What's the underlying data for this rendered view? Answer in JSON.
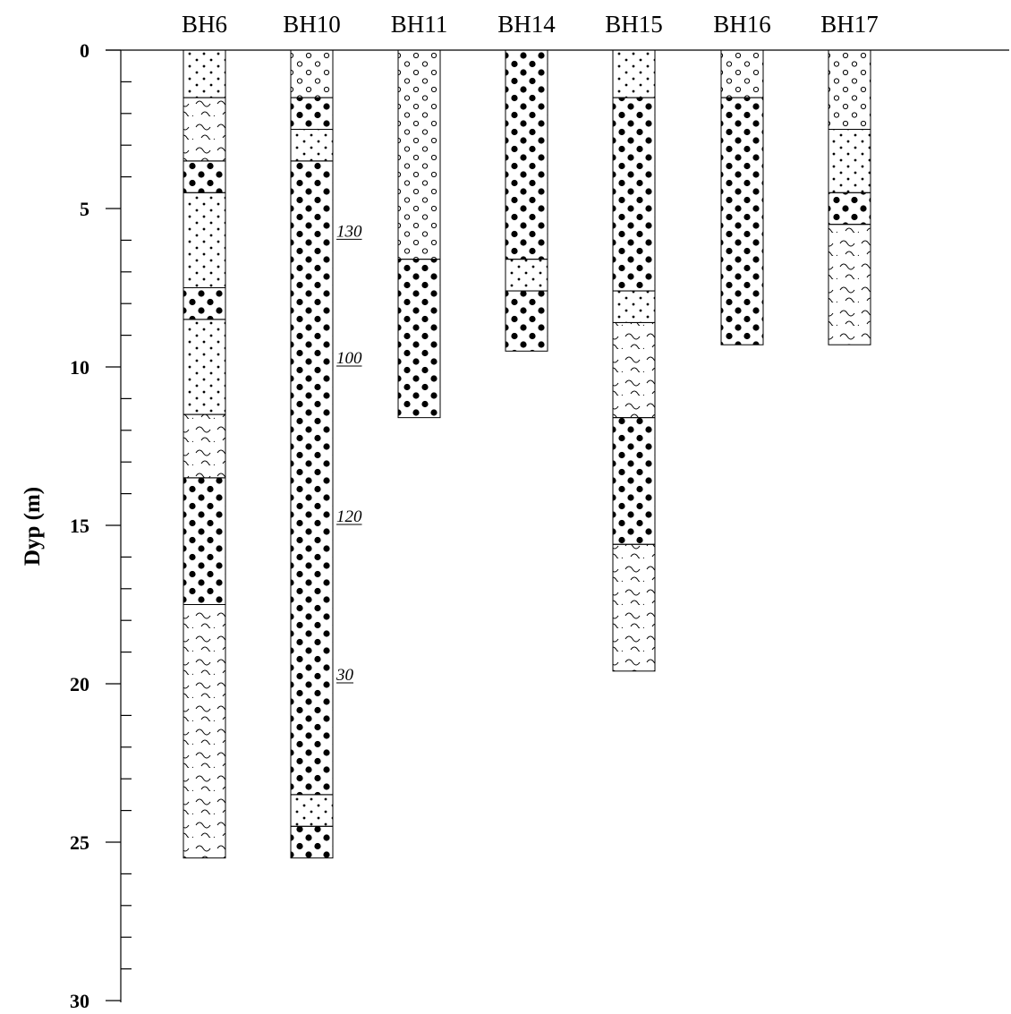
{
  "y_axis": {
    "title": "Dyp (m)",
    "min": 0,
    "max": 30,
    "major_ticks": [
      0,
      5,
      10,
      15,
      20,
      25,
      30
    ],
    "minor_step": 1
  },
  "soil_symbols": {
    "fine_dots": "fine sand",
    "large_dots": "gravel",
    "open_circles": "coarse material",
    "waves": "clay"
  },
  "boreholes": [
    {
      "name": "BH6",
      "layers": [
        {
          "from": 0,
          "to": 1.5,
          "pattern": "fine_dots"
        },
        {
          "from": 1.5,
          "to": 3.5,
          "pattern": "waves"
        },
        {
          "from": 3.5,
          "to": 4.5,
          "pattern": "large_dots"
        },
        {
          "from": 4.5,
          "to": 7.5,
          "pattern": "fine_dots"
        },
        {
          "from": 7.5,
          "to": 8.5,
          "pattern": "large_dots"
        },
        {
          "from": 8.5,
          "to": 11.5,
          "pattern": "fine_dots"
        },
        {
          "from": 11.5,
          "to": 13.5,
          "pattern": "waves"
        },
        {
          "from": 13.5,
          "to": 17.5,
          "pattern": "large_dots"
        },
        {
          "from": 17.5,
          "to": 25.5,
          "pattern": "waves"
        }
      ]
    },
    {
      "name": "BH10",
      "layers": [
        {
          "from": 0,
          "to": 1.5,
          "pattern": "open_circles"
        },
        {
          "from": 1.5,
          "to": 2.5,
          "pattern": "large_dots"
        },
        {
          "from": 2.5,
          "to": 3.5,
          "pattern": "fine_dots"
        },
        {
          "from": 3.5,
          "to": 23.5,
          "pattern": "large_dots"
        },
        {
          "from": 23.5,
          "to": 24.5,
          "pattern": "fine_dots"
        },
        {
          "from": 24.5,
          "to": 25.5,
          "pattern": "large_dots"
        }
      ],
      "annotations": [
        {
          "depth": 6,
          "text": "130"
        },
        {
          "depth": 10,
          "text": "100"
        },
        {
          "depth": 15,
          "text": "120"
        },
        {
          "depth": 20,
          "text": "30"
        }
      ]
    },
    {
      "name": "BH11",
      "layers": [
        {
          "from": 0,
          "to": 6.6,
          "pattern": "open_circles"
        },
        {
          "from": 6.6,
          "to": 11.6,
          "pattern": "large_dots"
        }
      ]
    },
    {
      "name": "BH14",
      "layers": [
        {
          "from": 0,
          "to": 6.6,
          "pattern": "large_dots"
        },
        {
          "from": 6.6,
          "to": 7.6,
          "pattern": "fine_dots"
        },
        {
          "from": 7.6,
          "to": 9.5,
          "pattern": "large_dots"
        }
      ]
    },
    {
      "name": "BH15",
      "layers": [
        {
          "from": 0,
          "to": 1.5,
          "pattern": "fine_dots"
        },
        {
          "from": 1.5,
          "to": 7.6,
          "pattern": "large_dots"
        },
        {
          "from": 7.6,
          "to": 8.6,
          "pattern": "fine_dots"
        },
        {
          "from": 8.6,
          "to": 11.6,
          "pattern": "waves"
        },
        {
          "from": 11.6,
          "to": 15.6,
          "pattern": "large_dots"
        },
        {
          "from": 15.6,
          "to": 19.6,
          "pattern": "waves"
        }
      ]
    },
    {
      "name": "BH16",
      "layers": [
        {
          "from": 0,
          "to": 1.5,
          "pattern": "open_circles"
        },
        {
          "from": 1.5,
          "to": 9.3,
          "pattern": "large_dots"
        }
      ]
    },
    {
      "name": "BH17",
      "layers": [
        {
          "from": 0,
          "to": 2.5,
          "pattern": "open_circles"
        },
        {
          "from": 2.5,
          "to": 4.5,
          "pattern": "fine_dots"
        },
        {
          "from": 4.5,
          "to": 5.5,
          "pattern": "large_dots"
        },
        {
          "from": 5.5,
          "to": 9.3,
          "pattern": "waves"
        }
      ]
    }
  ]
}
